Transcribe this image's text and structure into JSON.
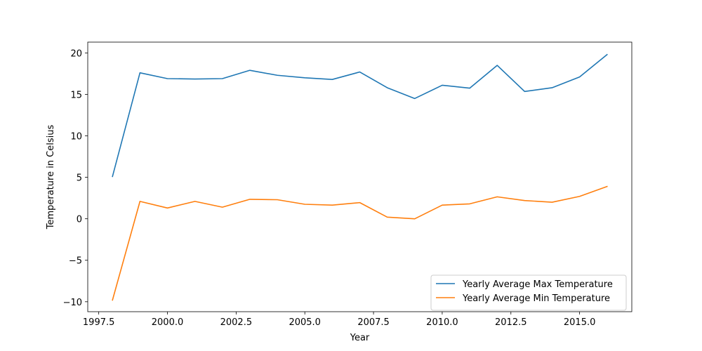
{
  "chart_data": {
    "type": "line",
    "xlabel": "Year",
    "ylabel": "Temperature in Celsius",
    "xlim": [
      1997.1,
      2016.9
    ],
    "ylim": [
      -11.2,
      21.3
    ],
    "xticks": [
      1997.5,
      2000.0,
      2002.5,
      2005.0,
      2007.5,
      2010.0,
      2012.5,
      2015.0
    ],
    "xtick_labels": [
      "1997.5",
      "2000.0",
      "2002.5",
      "2005.0",
      "2007.5",
      "2010.0",
      "2012.5",
      "2015.0"
    ],
    "yticks": [
      -10,
      -5,
      0,
      5,
      10,
      15,
      20
    ],
    "ytick_labels": [
      "−10",
      "−5",
      "0",
      "5",
      "10",
      "15",
      "20"
    ],
    "grid": false,
    "legend_position": "bottom-right",
    "x": [
      1998,
      1999,
      2000,
      2001,
      2002,
      2003,
      2004,
      2005,
      2006,
      2007,
      2008,
      2009,
      2010,
      2011,
      2012,
      2013,
      2014,
      2015,
      2016
    ],
    "series": [
      {
        "name": "Yearly Average Max Temperature",
        "color": "#1f77b4",
        "values": [
          5.1,
          17.6,
          16.9,
          16.85,
          16.9,
          17.9,
          17.3,
          17.0,
          16.8,
          17.7,
          15.8,
          14.5,
          16.1,
          15.75,
          18.5,
          15.35,
          15.8,
          17.1,
          19.8
        ]
      },
      {
        "name": "Yearly Average Min Temperature",
        "color": "#ff7f0e",
        "values": [
          -9.8,
          2.1,
          1.3,
          2.1,
          1.4,
          2.35,
          2.3,
          1.75,
          1.65,
          1.95,
          0.2,
          0.0,
          1.65,
          1.8,
          2.65,
          2.2,
          2.0,
          2.7,
          3.9
        ]
      }
    ]
  }
}
